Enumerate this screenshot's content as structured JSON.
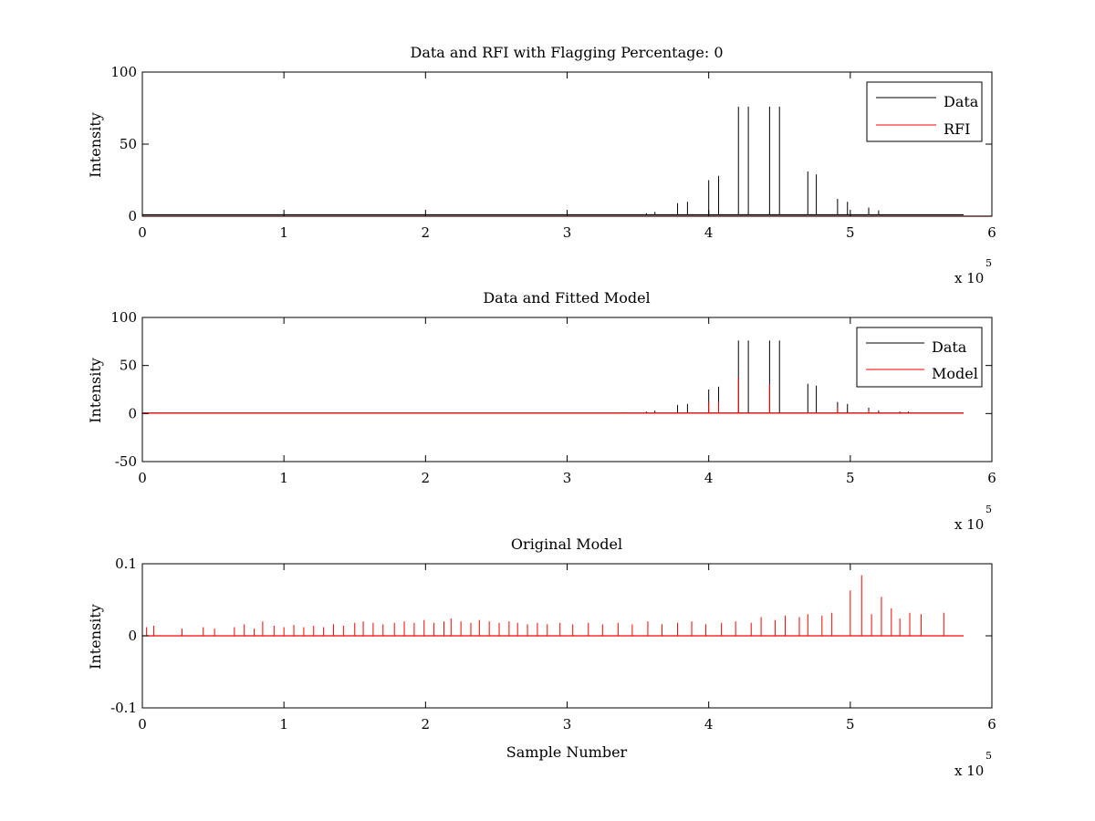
{
  "chart_data": [
    {
      "type": "line",
      "title": "Data and RFI with Flagging Percentage: 0",
      "xlabel": "",
      "ylabel": "Intensity",
      "xlim": [
        0,
        600000
      ],
      "ylim": [
        0,
        100
      ],
      "x_ticks": [
        0,
        1,
        2,
        3,
        4,
        5,
        6
      ],
      "x_tick_labels": [
        "0",
        "1",
        "2",
        "3",
        "4",
        "5",
        "6"
      ],
      "x_multiplier": {
        "base": "x 10",
        "exponent": "5"
      },
      "y_ticks": [
        0,
        50,
        100
      ],
      "y_tick_labels": [
        "0",
        "50",
        "100"
      ],
      "grid": false,
      "legend": {
        "location": "top-right",
        "entries": [
          "Data",
          "RFI"
        ]
      },
      "series": [
        {
          "name": "Data",
          "color": "#000000",
          "baseline": 1,
          "x_end": 580000,
          "spikes": [
            {
              "x": 356000,
              "y": 2
            },
            {
              "x": 362000,
              "y": 3
            },
            {
              "x": 378000,
              "y": 9
            },
            {
              "x": 385000,
              "y": 10
            },
            {
              "x": 400000,
              "y": 25
            },
            {
              "x": 407000,
              "y": 28
            },
            {
              "x": 421000,
              "y": 76
            },
            {
              "x": 428000,
              "y": 76
            },
            {
              "x": 443000,
              "y": 76
            },
            {
              "x": 450000,
              "y": 76
            },
            {
              "x": 470000,
              "y": 31
            },
            {
              "x": 476000,
              "y": 29
            },
            {
              "x": 491000,
              "y": 12
            },
            {
              "x": 498000,
              "y": 10
            },
            {
              "x": 513000,
              "y": 6
            },
            {
              "x": 520000,
              "y": 4
            }
          ]
        },
        {
          "name": "RFI",
          "color": "#ff0000",
          "values": "flat at 0"
        }
      ]
    },
    {
      "type": "line",
      "title": "Data and Fitted Model",
      "xlabel": "",
      "ylabel": "Intensity",
      "xlim": [
        0,
        600000
      ],
      "ylim": [
        -50,
        100
      ],
      "x_ticks": [
        0,
        1,
        2,
        3,
        4,
        5,
        6
      ],
      "x_tick_labels": [
        "0",
        "1",
        "2",
        "3",
        "4",
        "5",
        "6"
      ],
      "x_multiplier": {
        "base": "x 10",
        "exponent": "5"
      },
      "y_ticks": [
        -50,
        0,
        50,
        100
      ],
      "y_tick_labels": [
        "-50",
        "0",
        "50",
        "100"
      ],
      "grid": false,
      "legend": {
        "location": "top-right",
        "entries": [
          "Data",
          "Model"
        ]
      },
      "series": [
        {
          "name": "Data",
          "color": "#000000",
          "baseline": 0.5,
          "x_end": 580000,
          "spikes": [
            {
              "x": 340000,
              "y": 1
            },
            {
              "x": 356000,
              "y": 2
            },
            {
              "x": 362000,
              "y": 3
            },
            {
              "x": 378000,
              "y": 9
            },
            {
              "x": 385000,
              "y": 10
            },
            {
              "x": 400000,
              "y": 25
            },
            {
              "x": 407000,
              "y": 28
            },
            {
              "x": 421000,
              "y": 76
            },
            {
              "x": 428000,
              "y": 76
            },
            {
              "x": 443000,
              "y": 76
            },
            {
              "x": 450000,
              "y": 76
            },
            {
              "x": 470000,
              "y": 31
            },
            {
              "x": 476000,
              "y": 29
            },
            {
              "x": 491000,
              "y": 12
            },
            {
              "x": 498000,
              "y": 10
            },
            {
              "x": 513000,
              "y": 6
            },
            {
              "x": 520000,
              "y": 3
            },
            {
              "x": 535000,
              "y": 2
            },
            {
              "x": 541000,
              "y": 2
            }
          ]
        },
        {
          "name": "Model",
          "color": "#ff0000",
          "baseline": 0.5,
          "x_end": 580000,
          "spikes": [
            {
              "x": 400000,
              "y": 12
            },
            {
              "x": 407000,
              "y": 12
            },
            {
              "x": 421000,
              "y": 37
            },
            {
              "x": 443000,
              "y": 30
            },
            {
              "x": 491000,
              "y": 6
            },
            {
              "x": 513000,
              "y": 3
            }
          ]
        }
      ]
    },
    {
      "type": "line",
      "title": "Original Model",
      "xlabel": "Sample Number",
      "ylabel": "Intensity",
      "xlim": [
        0,
        600000
      ],
      "ylim": [
        -0.1,
        0.1
      ],
      "x_ticks": [
        0,
        1,
        2,
        3,
        4,
        5,
        6
      ],
      "x_tick_labels": [
        "0",
        "1",
        "2",
        "3",
        "4",
        "5",
        "6"
      ],
      "x_multiplier": {
        "base": "x 10",
        "exponent": "5"
      },
      "y_ticks": [
        -0.1,
        0,
        0.1
      ],
      "y_tick_labels": [
        "-0.1",
        "0",
        "0.1"
      ],
      "grid": false,
      "legend": null,
      "series": [
        {
          "name": "",
          "color": "#ff0000",
          "baseline": 0,
          "x_end": 580000,
          "spikes": [
            {
              "x": 3000,
              "y": 0.012
            },
            {
              "x": 8000,
              "y": 0.014
            },
            {
              "x": 28000,
              "y": 0.01
            },
            {
              "x": 43000,
              "y": 0.012
            },
            {
              "x": 51000,
              "y": 0.01
            },
            {
              "x": 65000,
              "y": 0.012
            },
            {
              "x": 72000,
              "y": 0.016
            },
            {
              "x": 79000,
              "y": 0.01
            },
            {
              "x": 85000,
              "y": 0.02
            },
            {
              "x": 93000,
              "y": 0.014
            },
            {
              "x": 100000,
              "y": 0.012
            },
            {
              "x": 107000,
              "y": 0.015
            },
            {
              "x": 114000,
              "y": 0.012
            },
            {
              "x": 121000,
              "y": 0.014
            },
            {
              "x": 128000,
              "y": 0.012
            },
            {
              "x": 135000,
              "y": 0.016
            },
            {
              "x": 142000,
              "y": 0.014
            },
            {
              "x": 150000,
              "y": 0.018
            },
            {
              "x": 156000,
              "y": 0.02
            },
            {
              "x": 163000,
              "y": 0.018
            },
            {
              "x": 170000,
              "y": 0.016
            },
            {
              "x": 178000,
              "y": 0.018
            },
            {
              "x": 185000,
              "y": 0.02
            },
            {
              "x": 192000,
              "y": 0.018
            },
            {
              "x": 199000,
              "y": 0.022
            },
            {
              "x": 206000,
              "y": 0.018
            },
            {
              "x": 213000,
              "y": 0.02
            },
            {
              "x": 218000,
              "y": 0.024
            },
            {
              "x": 225000,
              "y": 0.02
            },
            {
              "x": 232000,
              "y": 0.018
            },
            {
              "x": 238000,
              "y": 0.022
            },
            {
              "x": 245000,
              "y": 0.02
            },
            {
              "x": 252000,
              "y": 0.018
            },
            {
              "x": 259000,
              "y": 0.02
            },
            {
              "x": 265000,
              "y": 0.018
            },
            {
              "x": 272000,
              "y": 0.016
            },
            {
              "x": 279000,
              "y": 0.018
            },
            {
              "x": 286000,
              "y": 0.016
            },
            {
              "x": 295000,
              "y": 0.018
            },
            {
              "x": 304000,
              "y": 0.016
            },
            {
              "x": 315000,
              "y": 0.018
            },
            {
              "x": 325000,
              "y": 0.016
            },
            {
              "x": 336000,
              "y": 0.018
            },
            {
              "x": 346000,
              "y": 0.016
            },
            {
              "x": 357000,
              "y": 0.02
            },
            {
              "x": 367000,
              "y": 0.016
            },
            {
              "x": 378000,
              "y": 0.018
            },
            {
              "x": 388000,
              "y": 0.02
            },
            {
              "x": 398000,
              "y": 0.016
            },
            {
              "x": 409000,
              "y": 0.018
            },
            {
              "x": 419000,
              "y": 0.02
            },
            {
              "x": 430000,
              "y": 0.018
            },
            {
              "x": 437000,
              "y": 0.026
            },
            {
              "x": 447000,
              "y": 0.022
            },
            {
              "x": 454000,
              "y": 0.028
            },
            {
              "x": 464000,
              "y": 0.026
            },
            {
              "x": 470000,
              "y": 0.03
            },
            {
              "x": 480000,
              "y": 0.028
            },
            {
              "x": 487000,
              "y": 0.032
            },
            {
              "x": 500000,
              "y": 0.063
            },
            {
              "x": 508000,
              "y": 0.084
            },
            {
              "x": 515000,
              "y": 0.03
            },
            {
              "x": 522000,
              "y": 0.054
            },
            {
              "x": 529000,
              "y": 0.038
            },
            {
              "x": 535000,
              "y": 0.024
            },
            {
              "x": 542000,
              "y": 0.032
            },
            {
              "x": 550000,
              "y": 0.03
            },
            {
              "x": 566000,
              "y": 0.032
            }
          ]
        }
      ]
    }
  ]
}
